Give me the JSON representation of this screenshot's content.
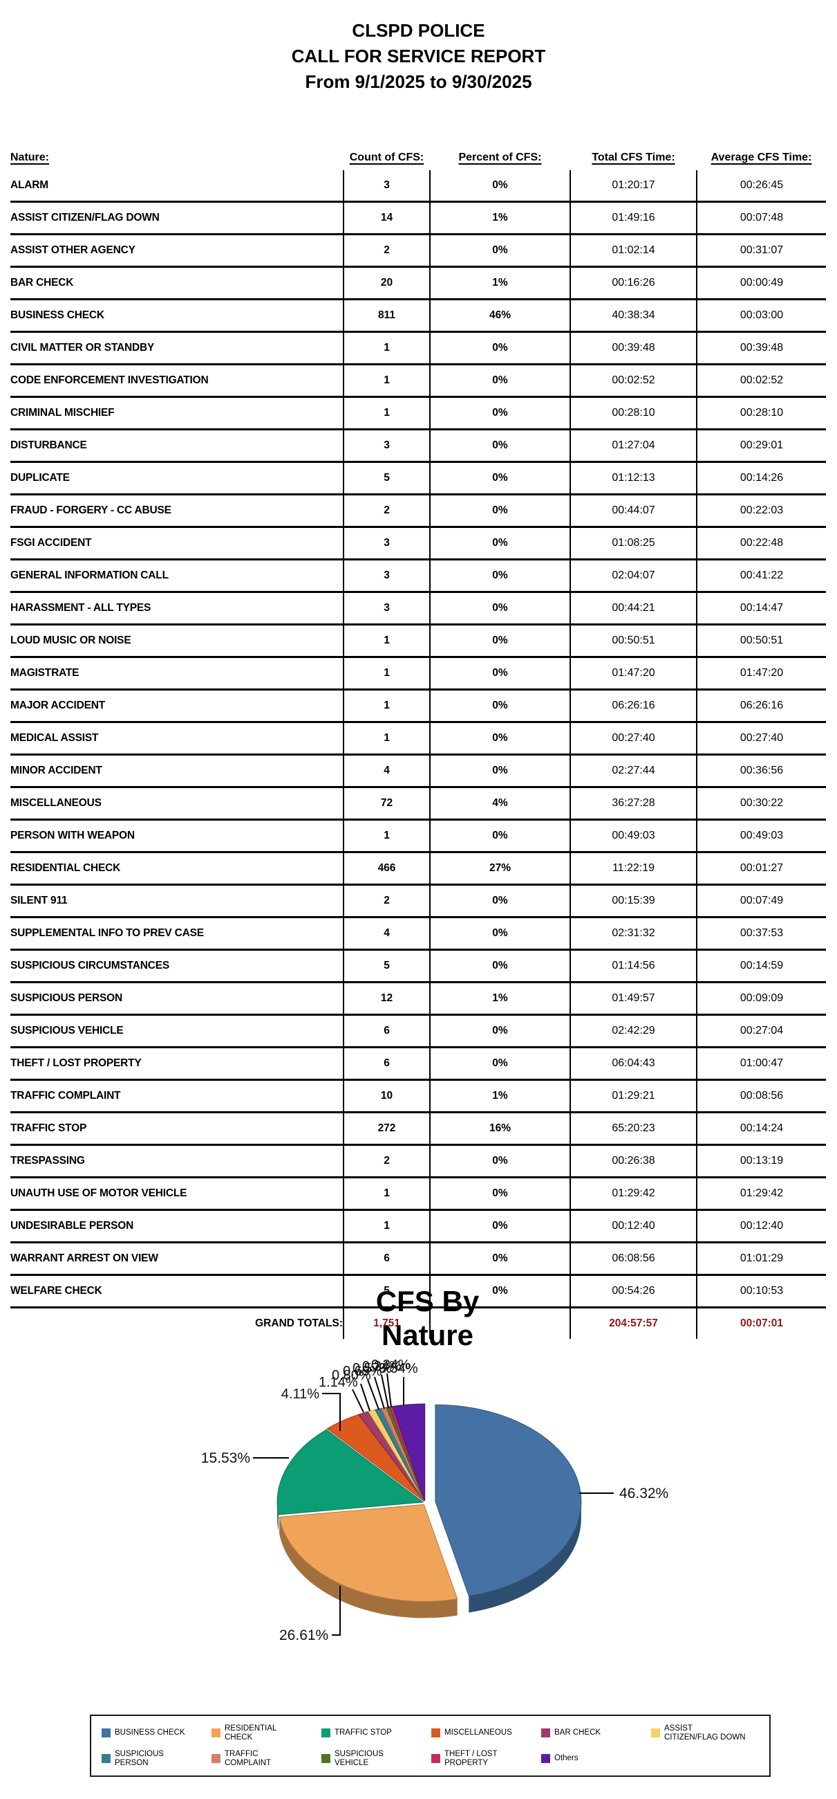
{
  "report": {
    "title_line1": "CLSPD POLICE",
    "title_line2": "CALL FOR SERVICE REPORT",
    "title_line3": "From 9/1/2025 to 9/30/2025"
  },
  "table": {
    "headers": {
      "nature": "Nature:",
      "count": "Count of CFS:",
      "percent": "Percent of CFS:",
      "total": "Total CFS Time:",
      "average": "Average CFS Time:"
    },
    "rows": [
      {
        "nature": "ALARM",
        "count": "3",
        "percent": "0%",
        "total": "01:20:17",
        "average": "00:26:45"
      },
      {
        "nature": "ASSIST CITIZEN/FLAG DOWN",
        "count": "14",
        "percent": "1%",
        "total": "01:49:16",
        "average": "00:07:48"
      },
      {
        "nature": "ASSIST OTHER AGENCY",
        "count": "2",
        "percent": "0%",
        "total": "01:02:14",
        "average": "00:31:07"
      },
      {
        "nature": "BAR CHECK",
        "count": "20",
        "percent": "1%",
        "total": "00:16:26",
        "average": "00:00:49"
      },
      {
        "nature": "BUSINESS CHECK",
        "count": "811",
        "percent": "46%",
        "total": "40:38:34",
        "average": "00:03:00"
      },
      {
        "nature": "CIVIL MATTER OR STANDBY",
        "count": "1",
        "percent": "0%",
        "total": "00:39:48",
        "average": "00:39:48"
      },
      {
        "nature": "CODE ENFORCEMENT INVESTIGATION",
        "count": "1",
        "percent": "0%",
        "total": "00:02:52",
        "average": "00:02:52"
      },
      {
        "nature": "CRIMINAL MISCHIEF",
        "count": "1",
        "percent": "0%",
        "total": "00:28:10",
        "average": "00:28:10"
      },
      {
        "nature": "DISTURBANCE",
        "count": "3",
        "percent": "0%",
        "total": "01:27:04",
        "average": "00:29:01"
      },
      {
        "nature": "DUPLICATE",
        "count": "5",
        "percent": "0%",
        "total": "01:12:13",
        "average": "00:14:26"
      },
      {
        "nature": "FRAUD - FORGERY - CC ABUSE",
        "count": "2",
        "percent": "0%",
        "total": "00:44:07",
        "average": "00:22:03"
      },
      {
        "nature": "FSGI ACCIDENT",
        "count": "3",
        "percent": "0%",
        "total": "01:08:25",
        "average": "00:22:48"
      },
      {
        "nature": "GENERAL INFORMATION CALL",
        "count": "3",
        "percent": "0%",
        "total": "02:04:07",
        "average": "00:41:22"
      },
      {
        "nature": "HARASSMENT - ALL TYPES",
        "count": "3",
        "percent": "0%",
        "total": "00:44:21",
        "average": "00:14:47"
      },
      {
        "nature": "LOUD MUSIC OR NOISE",
        "count": "1",
        "percent": "0%",
        "total": "00:50:51",
        "average": "00:50:51"
      },
      {
        "nature": "MAGISTRATE",
        "count": "1",
        "percent": "0%",
        "total": "01:47:20",
        "average": "01:47:20"
      },
      {
        "nature": "MAJOR ACCIDENT",
        "count": "1",
        "percent": "0%",
        "total": "06:26:16",
        "average": "06:26:16"
      },
      {
        "nature": "MEDICAL ASSIST",
        "count": "1",
        "percent": "0%",
        "total": "00:27:40",
        "average": "00:27:40"
      },
      {
        "nature": "MINOR ACCIDENT",
        "count": "4",
        "percent": "0%",
        "total": "02:27:44",
        "average": "00:36:56"
      },
      {
        "nature": "MISCELLANEOUS",
        "count": "72",
        "percent": "4%",
        "total": "36:27:28",
        "average": "00:30:22"
      },
      {
        "nature": "PERSON WITH WEAPON",
        "count": "1",
        "percent": "0%",
        "total": "00:49:03",
        "average": "00:49:03"
      },
      {
        "nature": "RESIDENTIAL CHECK",
        "count": "466",
        "percent": "27%",
        "total": "11:22:19",
        "average": "00:01:27"
      },
      {
        "nature": "SILENT 911",
        "count": "2",
        "percent": "0%",
        "total": "00:15:39",
        "average": "00:07:49"
      },
      {
        "nature": "SUPPLEMENTAL INFO TO PREV CASE",
        "count": "4",
        "percent": "0%",
        "total": "02:31:32",
        "average": "00:37:53"
      },
      {
        "nature": "SUSPICIOUS CIRCUMSTANCES",
        "count": "5",
        "percent": "0%",
        "total": "01:14:56",
        "average": "00:14:59"
      },
      {
        "nature": "SUSPICIOUS PERSON",
        "count": "12",
        "percent": "1%",
        "total": "01:49:57",
        "average": "00:09:09"
      },
      {
        "nature": "SUSPICIOUS VEHICLE",
        "count": "6",
        "percent": "0%",
        "total": "02:42:29",
        "average": "00:27:04"
      },
      {
        "nature": "THEFT / LOST PROPERTY",
        "count": "6",
        "percent": "0%",
        "total": "06:04:43",
        "average": "01:00:47"
      },
      {
        "nature": "TRAFFIC COMPLAINT",
        "count": "10",
        "percent": "1%",
        "total": "01:29:21",
        "average": "00:08:56"
      },
      {
        "nature": "TRAFFIC STOP",
        "count": "272",
        "percent": "16%",
        "total": "65:20:23",
        "average": "00:14:24"
      },
      {
        "nature": "TRESPASSING",
        "count": "2",
        "percent": "0%",
        "total": "00:26:38",
        "average": "00:13:19"
      },
      {
        "nature": "UNAUTH USE OF MOTOR VEHICLE",
        "count": "1",
        "percent": "0%",
        "total": "01:29:42",
        "average": "01:29:42"
      },
      {
        "nature": "UNDESIRABLE PERSON",
        "count": "1",
        "percent": "0%",
        "total": "00:12:40",
        "average": "00:12:40"
      },
      {
        "nature": "WARRANT ARREST ON VIEW",
        "count": "6",
        "percent": "0%",
        "total": "06:08:56",
        "average": "01:01:29"
      },
      {
        "nature": "WELFARE CHECK",
        "count": "5",
        "percent": "0%",
        "total": "00:54:26",
        "average": "00:10:53"
      }
    ],
    "grand_totals": {
      "label": "GRAND TOTALS:",
      "count": "1,751",
      "percent": "",
      "total": "204:57:57",
      "average": "00:07:01"
    },
    "totals_color": "#8e1818"
  },
  "chart_data": {
    "type": "pie",
    "title_line1": "CFS By",
    "title_line2": "Nature",
    "total": 1751,
    "legend_position": "bottom",
    "slices": [
      {
        "label": "BUSINESS CHECK",
        "value": 811,
        "pct": "46.32%",
        "color": "#4472a4"
      },
      {
        "label": "RESIDENTIAL CHECK",
        "value": 466,
        "pct": "26.61%",
        "color": "#f0a45a"
      },
      {
        "label": "TRAFFIC STOP",
        "value": 272,
        "pct": "15.53%",
        "color": "#0d9d74"
      },
      {
        "label": "MISCELLANEOUS",
        "value": 72,
        "pct": "4.11%",
        "color": "#dc5a1e"
      },
      {
        "label": "BAR CHECK",
        "value": 20,
        "pct": "1.14%",
        "color": "#a43a6a"
      },
      {
        "label": "ASSIST CITIZEN/FLAG DOWN",
        "value": 14,
        "pct": "0.80%",
        "color": "#f6d264"
      },
      {
        "label": "SUSPICIOUS PERSON",
        "value": 12,
        "pct": "0.69%",
        "color": "#347f8d"
      },
      {
        "label": "TRAFFIC COMPLAINT",
        "value": 10,
        "pct": "0.57%",
        "color": "#d97d68"
      },
      {
        "label": "SUSPICIOUS VEHICLE",
        "value": 6,
        "pct": "0.34%",
        "color": "#4e7721"
      },
      {
        "label": "THEFT / LOST PROPERTY",
        "value": 6,
        "pct": "0.34%",
        "color": "#ca2a62"
      },
      {
        "label": "Others",
        "value": 62,
        "pct": "3.54%",
        "color": "#5e1ca6"
      }
    ]
  }
}
